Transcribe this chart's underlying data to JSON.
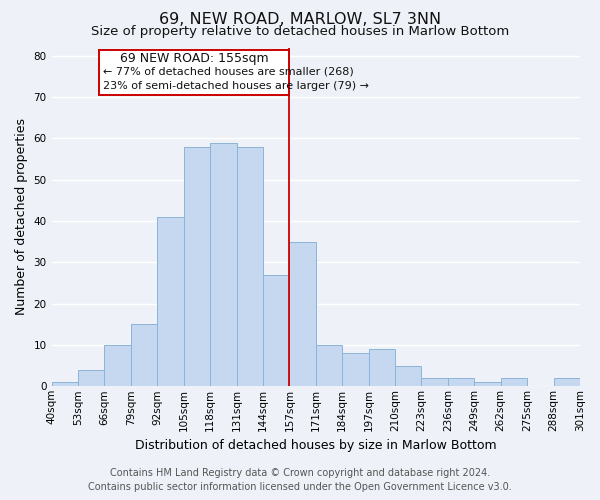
{
  "title": "69, NEW ROAD, MARLOW, SL7 3NN",
  "subtitle": "Size of property relative to detached houses in Marlow Bottom",
  "xlabel": "Distribution of detached houses by size in Marlow Bottom",
  "ylabel": "Number of detached properties",
  "bin_labels": [
    "40sqm",
    "53sqm",
    "66sqm",
    "79sqm",
    "92sqm",
    "105sqm",
    "118sqm",
    "131sqm",
    "144sqm",
    "157sqm",
    "171sqm",
    "184sqm",
    "197sqm",
    "210sqm",
    "223sqm",
    "236sqm",
    "249sqm",
    "262sqm",
    "275sqm",
    "288sqm",
    "301sqm"
  ],
  "bar_values": [
    1,
    4,
    10,
    15,
    41,
    58,
    59,
    58,
    27,
    35,
    10,
    8,
    9,
    5,
    2,
    2,
    1,
    2,
    0,
    2
  ],
  "bar_color": "#c5d8f0",
  "bar_edge_color": "#8ab4d8",
  "marker_line_color": "#cc0000",
  "marker_line_index": 9,
  "ylim": [
    0,
    82
  ],
  "yticks": [
    0,
    10,
    20,
    30,
    40,
    50,
    60,
    70,
    80
  ],
  "annotation_title": "69 NEW ROAD: 155sqm",
  "annotation_line1": "← 77% of detached houses are smaller (268)",
  "annotation_line2": "23% of semi-detached houses are larger (79) →",
  "annotation_box_color": "#ffffff",
  "annotation_box_edge": "#cc0000",
  "footer_line1": "Contains HM Land Registry data © Crown copyright and database right 2024.",
  "footer_line2": "Contains public sector information licensed under the Open Government Licence v3.0.",
  "bg_color": "#eef2f8",
  "grid_color": "#ffffff",
  "title_fontsize": 11.5,
  "subtitle_fontsize": 9.5,
  "xlabel_fontsize": 9,
  "ylabel_fontsize": 9,
  "tick_fontsize": 7.5,
  "footer_fontsize": 7,
  "ann_title_fontsize": 9,
  "ann_text_fontsize": 8
}
